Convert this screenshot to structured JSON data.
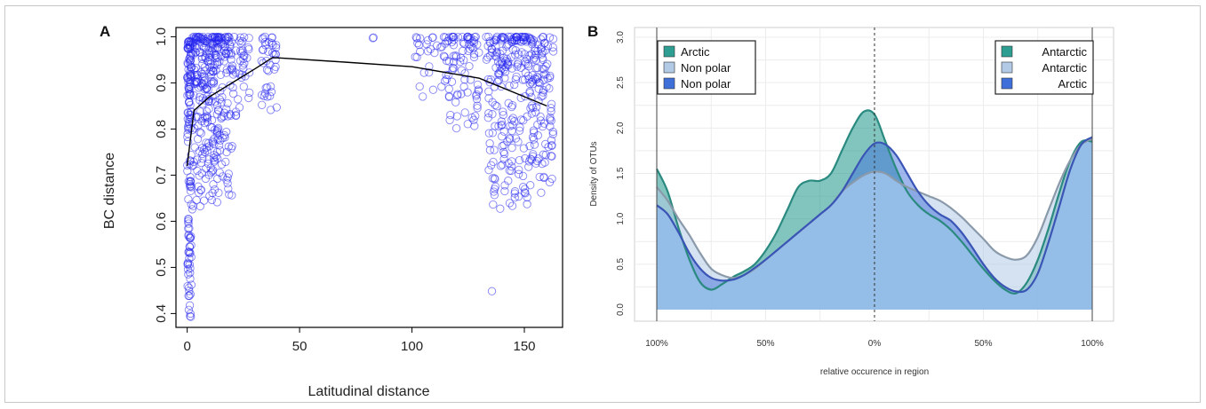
{
  "chart_data": [
    {
      "panel": "A",
      "type": "scatter",
      "xlabel": "Latitudinal distance",
      "ylabel": "BC distance",
      "xlim": [
        -5,
        167
      ],
      "ylim": [
        0.37,
        1.02
      ],
      "xticks": [
        0,
        50,
        100,
        150
      ],
      "yticks": [
        0.4,
        0.5,
        0.6,
        0.7,
        0.8,
        0.9,
        1.0
      ],
      "ytick_labels": [
        "0.4",
        "0.5",
        "0.6",
        "0.7",
        "0.8",
        "0.9",
        "1.0"
      ],
      "point_color": "#2222ee",
      "grid": false,
      "trend_line": {
        "color": "#000000",
        "x": [
          0,
          3,
          10,
          20,
          30,
          38,
          70,
          100,
          130,
          150,
          160
        ],
        "y": [
          0.72,
          0.84,
          0.87,
          0.9,
          0.93,
          0.955,
          0.945,
          0.935,
          0.91,
          0.87,
          0.85
        ]
      },
      "point_clusters": [
        {
          "x": [
            0,
            2
          ],
          "y": [
            0.39,
            0.99
          ],
          "n": 140
        },
        {
          "x": [
            2,
            8
          ],
          "y": [
            0.62,
            1.0
          ],
          "n": 110
        },
        {
          "x": [
            8,
            14
          ],
          "y": [
            0.64,
            1.0
          ],
          "n": 130
        },
        {
          "x": [
            14,
            20
          ],
          "y": [
            0.63,
            1.0
          ],
          "n": 80
        },
        {
          "x": [
            20,
            28
          ],
          "y": [
            0.82,
            1.0
          ],
          "n": 40
        },
        {
          "x": [
            33,
            40
          ],
          "y": [
            0.83,
            1.0
          ],
          "n": 40
        },
        {
          "x": [
            82,
            84
          ],
          "y": [
            0.995,
            1.0
          ],
          "n": 2
        },
        {
          "x": [
            101,
            116
          ],
          "y": [
            0.86,
            1.0
          ],
          "n": 35
        },
        {
          "x": [
            116,
            130
          ],
          "y": [
            0.8,
            1.0
          ],
          "n": 80
        },
        {
          "x": [
            133,
            143
          ],
          "y": [
            0.6,
            1.0
          ],
          "n": 110
        },
        {
          "x": [
            143,
            153
          ],
          "y": [
            0.63,
            1.0
          ],
          "n": 110
        },
        {
          "x": [
            153,
            163
          ],
          "y": [
            0.66,
            1.0
          ],
          "n": 110
        },
        {
          "x": [
            134,
            136
          ],
          "y": [
            0.44,
            0.45
          ],
          "n": 1
        }
      ]
    },
    {
      "panel": "B",
      "type": "area",
      "xlabel": "relative occurence in region",
      "ylabel": "Density of OTUs",
      "xlim": [
        -100,
        100
      ],
      "ylim": [
        0,
        3.0
      ],
      "xticks": [
        -100,
        -50,
        0,
        50,
        100
      ],
      "xtick_labels": [
        "100%",
        "50%",
        "0%",
        "50%",
        "100%"
      ],
      "yticks": [
        0,
        0.5,
        1.0,
        1.5,
        2.0,
        2.5,
        3.0
      ],
      "ytick_labels": [
        "0.0",
        "0.5",
        "1.0",
        "1.5",
        "2.0",
        "2.5",
        "3.0"
      ],
      "grid": true,
      "zero_line": true,
      "x": [
        -100,
        -95,
        -90,
        -85,
        -80,
        -75,
        -70,
        -65,
        -60,
        -55,
        -50,
        -45,
        -40,
        -35,
        -30,
        -25,
        -20,
        -15,
        -10,
        -5,
        0,
        5,
        10,
        15,
        20,
        25,
        30,
        35,
        40,
        45,
        50,
        55,
        60,
        65,
        70,
        75,
        80,
        85,
        90,
        95,
        100
      ],
      "series": [
        {
          "fill": "#2e9e92",
          "edge": "#2a8a80",
          "values": [
            1.55,
            1.3,
            0.9,
            0.55,
            0.3,
            0.22,
            0.28,
            0.36,
            0.42,
            0.5,
            0.65,
            0.85,
            1.1,
            1.35,
            1.42,
            1.42,
            1.5,
            1.75,
            2.0,
            2.18,
            2.15,
            1.85,
            1.55,
            1.3,
            1.15,
            1.05,
            0.98,
            0.88,
            0.75,
            0.6,
            0.45,
            0.32,
            0.22,
            0.18,
            0.3,
            0.55,
            0.9,
            1.3,
            1.65,
            1.85,
            1.85
          ]
        },
        {
          "fill": "#b2cae6",
          "edge": "#8a9aaa",
          "values": [
            1.35,
            1.2,
            1.0,
            0.82,
            0.62,
            0.45,
            0.38,
            0.35,
            0.38,
            0.45,
            0.55,
            0.65,
            0.75,
            0.85,
            0.95,
            1.05,
            1.15,
            1.3,
            1.4,
            1.48,
            1.52,
            1.5,
            1.42,
            1.35,
            1.3,
            1.25,
            1.2,
            1.12,
            1.02,
            0.9,
            0.78,
            0.65,
            0.58,
            0.55,
            0.6,
            0.8,
            1.1,
            1.4,
            1.65,
            1.82,
            1.88
          ]
        },
        {
          "fill": "#3f6fd9",
          "edge": "#3a55b5",
          "values": [
            1.15,
            1.05,
            0.85,
            0.62,
            0.45,
            0.35,
            0.32,
            0.33,
            0.38,
            0.46,
            0.55,
            0.65,
            0.75,
            0.85,
            0.95,
            1.05,
            1.15,
            1.3,
            1.5,
            1.7,
            1.83,
            1.82,
            1.7,
            1.5,
            1.3,
            1.15,
            1.05,
            0.98,
            0.85,
            0.68,
            0.5,
            0.35,
            0.25,
            0.2,
            0.22,
            0.4,
            0.75,
            1.15,
            1.55,
            1.82,
            1.9
          ]
        }
      ],
      "overlap_fill": "#96bfe8",
      "legend_left": {
        "position": "top-left",
        "entries": [
          {
            "label": "Arctic",
            "color": "#2e9e92"
          },
          {
            "label": "Non polar",
            "color": "#b2cae6"
          },
          {
            "label": "Non polar",
            "color": "#3f6fd9"
          }
        ]
      },
      "legend_right": {
        "position": "top-right",
        "entries": [
          {
            "label": "Antarctic",
            "color": "#2e9e92"
          },
          {
            "label": "Antarctic",
            "color": "#b2cae6"
          },
          {
            "label": "Arctic",
            "color": "#3f6fd9"
          }
        ]
      }
    }
  ],
  "panels": {
    "a_label": "A",
    "b_label": "B"
  }
}
